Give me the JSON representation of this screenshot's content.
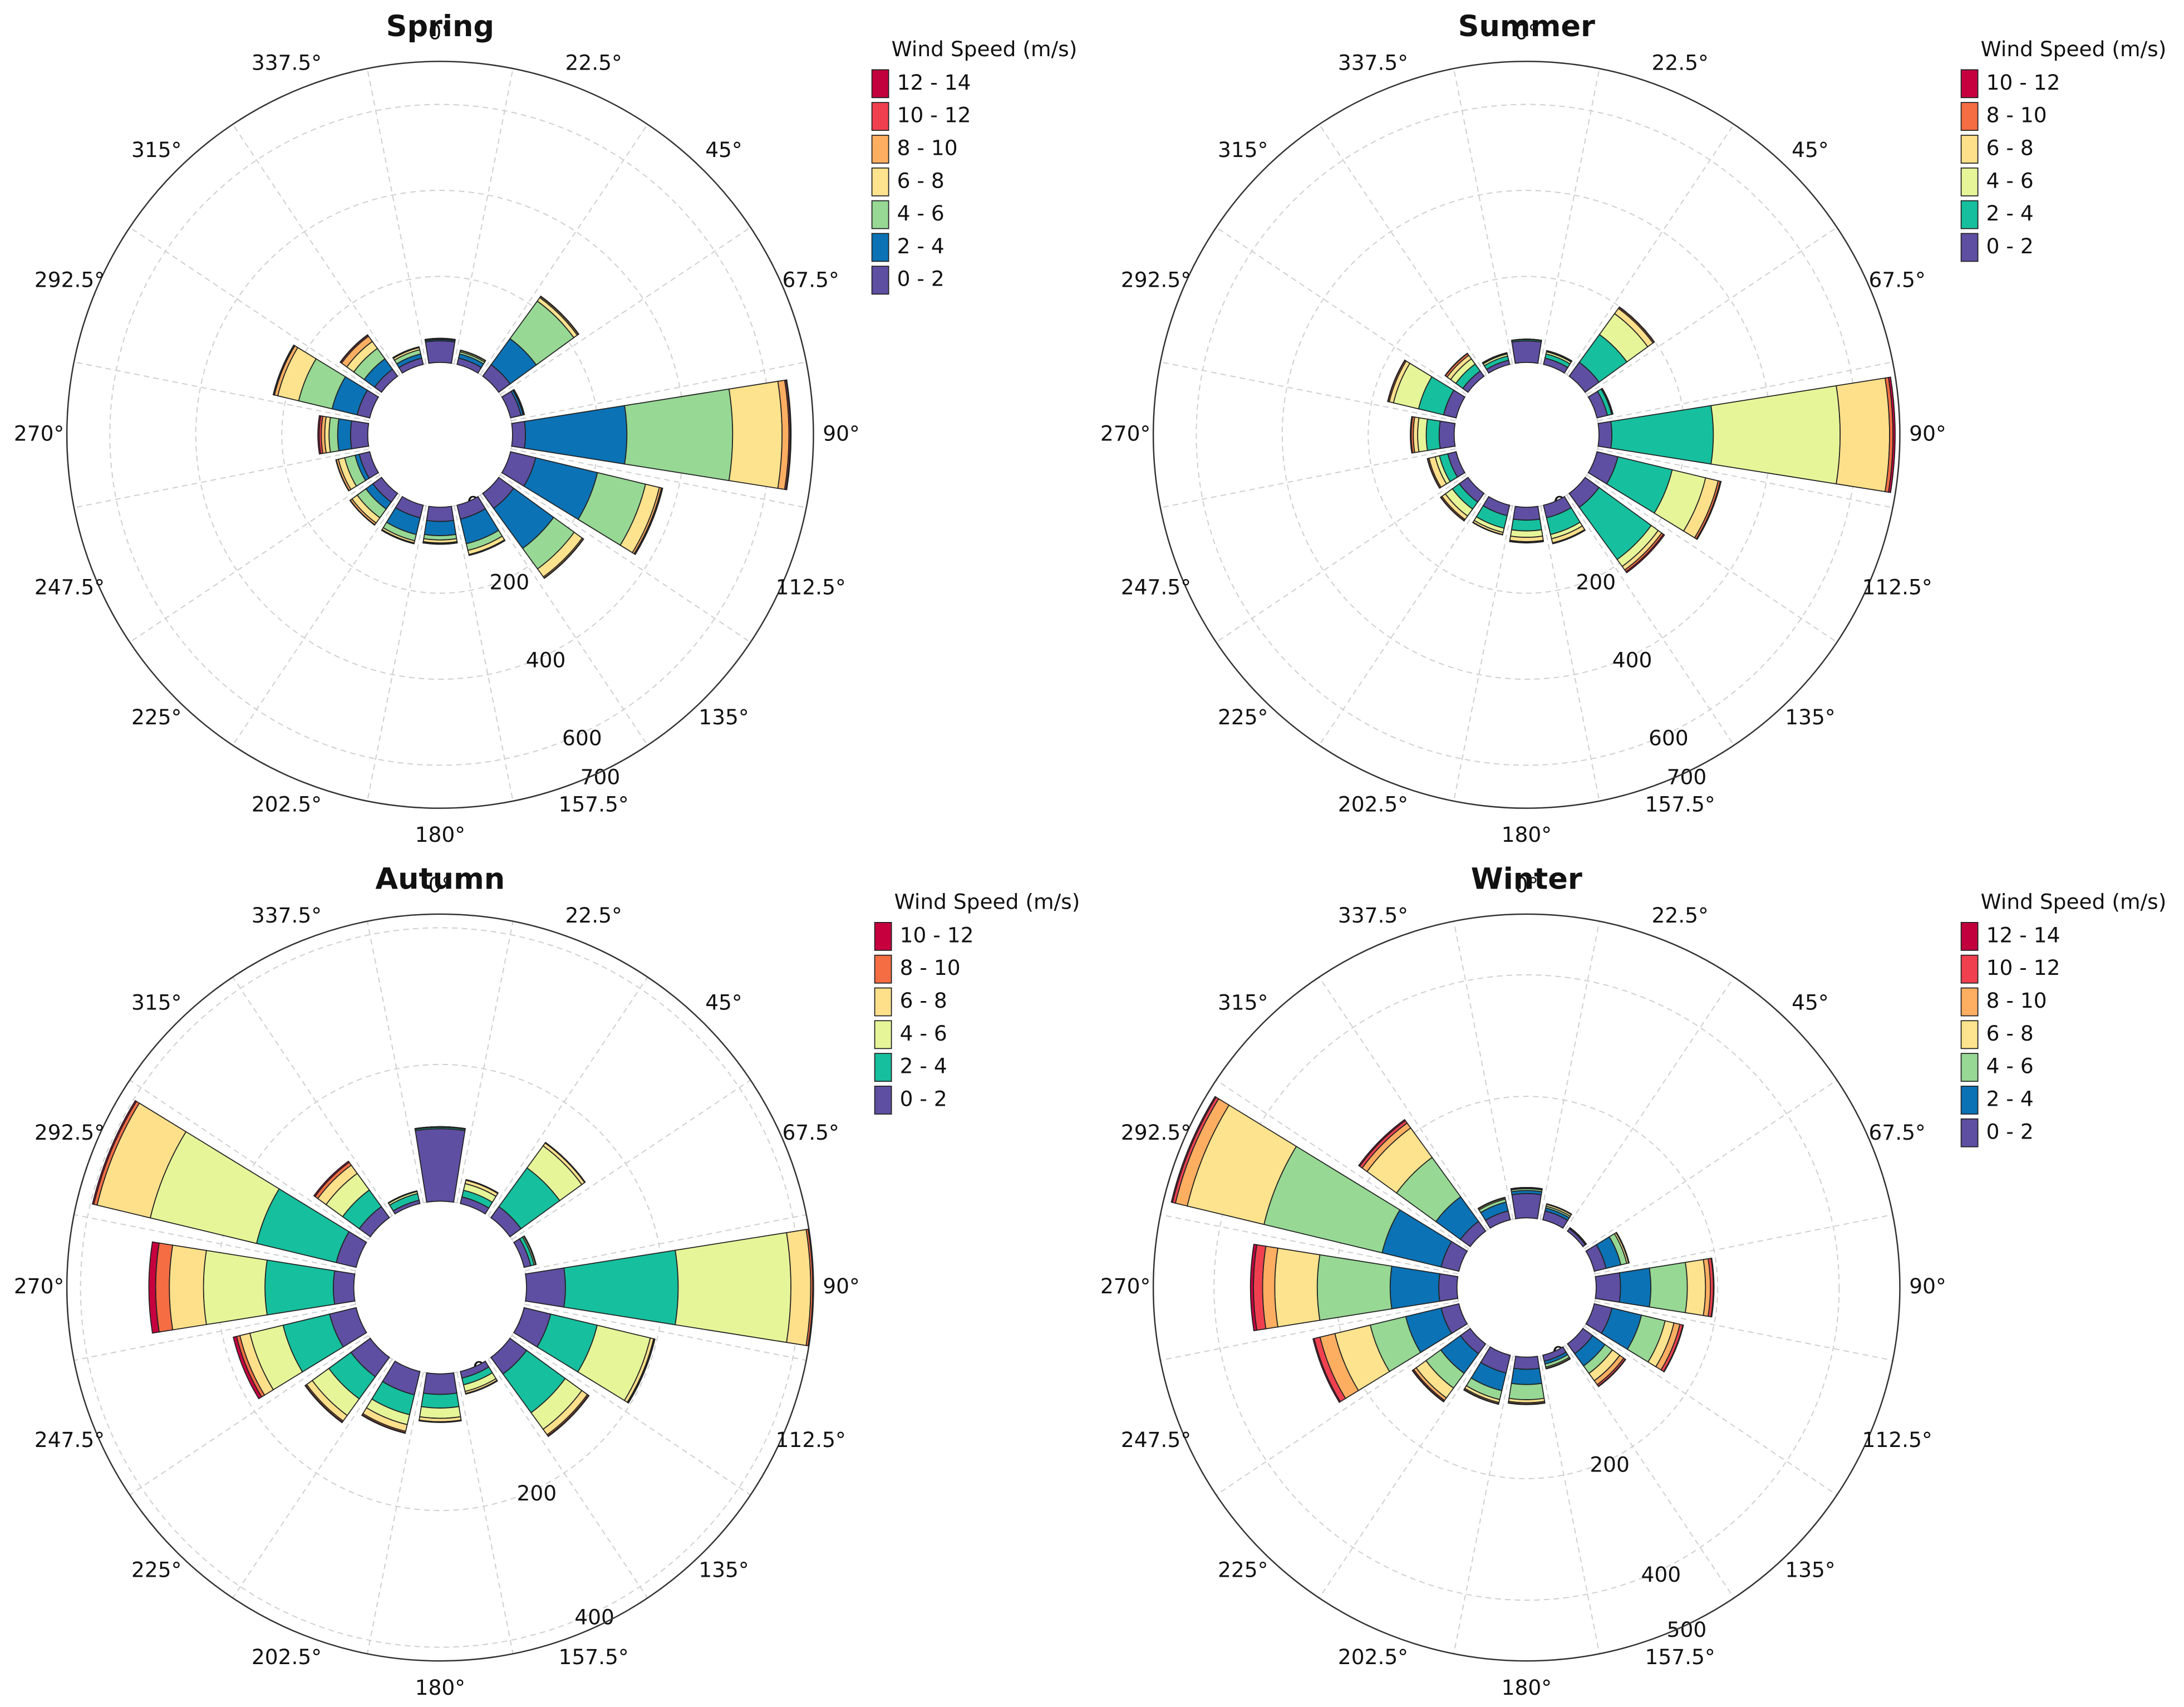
{
  "chart_data": [
    {
      "type": "rose",
      "title": "Spring",
      "legend_title": "Wind Speed (m/s)",
      "categories": [
        "0°",
        "22.5°",
        "45°",
        "67.5°",
        "90°",
        "112.5°",
        "135°",
        "157.5°",
        "180°",
        "202.5°",
        "225°",
        "247.5°",
        "270°",
        "292.5°",
        "315°",
        "337.5°"
      ],
      "rlim": [
        0,
        700
      ],
      "rticks": [
        0,
        200,
        400,
        600,
        700
      ],
      "series": [
        {
          "name": "0 - 2",
          "color": "#5e4fa2",
          "values": [
            50,
            15,
            33,
            25,
            30,
            60,
            43,
            33,
            33,
            30,
            25,
            25,
            40,
            30,
            20,
            15
          ]
        },
        {
          "name": "2 - 4",
          "color": "#0b72b5",
          "values": [
            3,
            10,
            75,
            5,
            236,
            148,
            115,
            59,
            33,
            40,
            20,
            10,
            30,
            60,
            30,
            10
          ]
        },
        {
          "name": "4 - 6",
          "color": "#96d894",
          "values": [
            1,
            5,
            108,
            2,
            246,
            115,
            59,
            16,
            10,
            15,
            25,
            25,
            20,
            80,
            30,
            10
          ]
        },
        {
          "name": "6 - 8",
          "color": "#fde38d",
          "values": [
            1,
            3,
            10,
            1,
            115,
            33,
            23,
            10,
            7,
            5,
            15,
            15,
            10,
            50,
            20,
            5
          ]
        },
        {
          "name": "8 - 10",
          "color": "#fdae61",
          "values": [
            1,
            1,
            3,
            0,
            16,
            5,
            3,
            2,
            2,
            2,
            5,
            5,
            8,
            8,
            15,
            2
          ]
        },
        {
          "name": "10 - 12",
          "color": "#f0404f",
          "values": [
            0,
            0,
            1,
            0,
            3,
            2,
            1,
            0,
            1,
            0,
            1,
            1,
            5,
            2,
            3,
            0
          ]
        },
        {
          "name": "12 - 14",
          "color": "#c2003d",
          "values": [
            0,
            0,
            0,
            0,
            2,
            1,
            0,
            0,
            0,
            0,
            0,
            0,
            3,
            1,
            1,
            0
          ]
        }
      ]
    },
    {
      "type": "rose",
      "title": "Summer",
      "legend_title": "Wind Speed (m/s)",
      "categories": [
        "0°",
        "22.5°",
        "45°",
        "67.5°",
        "90°",
        "112.5°",
        "135°",
        "157.5°",
        "180°",
        "202.5°",
        "225°",
        "247.5°",
        "270°",
        "292.5°",
        "315°",
        "337.5°"
      ],
      "rlim": [
        0,
        700
      ],
      "rticks": [
        0,
        200,
        400,
        600,
        700
      ],
      "series": [
        {
          "name": "0 - 2",
          "color": "#5e4fa2",
          "values": [
            50,
            15,
            40,
            25,
            30,
            50,
            40,
            30,
            30,
            25,
            25,
            20,
            35,
            30,
            15,
            10
          ]
        },
        {
          "name": "2 - 4",
          "color": "#16bf9e",
          "values": [
            3,
            10,
            80,
            10,
            236,
            130,
            150,
            40,
            25,
            30,
            20,
            20,
            30,
            60,
            20,
            10
          ]
        },
        {
          "name": "4 - 6",
          "color": "#e6f598",
          "values": [
            1,
            5,
            60,
            2,
            295,
            80,
            20,
            10,
            15,
            10,
            20,
            10,
            20,
            60,
            15,
            5
          ]
        },
        {
          "name": "6 - 8",
          "color": "#fee08b",
          "values": [
            0,
            2,
            15,
            1,
            115,
            30,
            10,
            10,
            10,
            5,
            10,
            15,
            10,
            10,
            10,
            2
          ]
        },
        {
          "name": "8 - 10",
          "color": "#f46d43",
          "values": [
            0,
            1,
            3,
            0,
            8,
            5,
            5,
            2,
            2,
            1,
            3,
            3,
            5,
            3,
            5,
            1
          ]
        },
        {
          "name": "10 - 12",
          "color": "#c6003f",
          "values": [
            0,
            0,
            1,
            0,
            5,
            2,
            3,
            0,
            1,
            0,
            1,
            1,
            2,
            1,
            1,
            0
          ]
        }
      ]
    },
    {
      "type": "rose",
      "title": "Autumn",
      "legend_title": "Wind Speed (m/s)",
      "categories": [
        "0°",
        "22.5°",
        "45°",
        "67.5°",
        "90°",
        "112.5°",
        "135°",
        "157.5°",
        "180°",
        "202.5°",
        "225°",
        "247.5°",
        "270°",
        "292.5°",
        "315°",
        "337.5°"
      ],
      "rlim": [
        0,
        420
      ],
      "rticks": [
        0,
        200,
        400
      ],
      "series": [
        {
          "name": "0 - 2",
          "color": "#5e4fa2",
          "values": [
            106,
            10,
            20,
            10,
            57,
            40,
            30,
            10,
            30,
            35,
            35,
            40,
            30,
            30,
            20,
            5
          ]
        },
        {
          "name": "2 - 4",
          "color": "#16bf9e",
          "values": [
            2,
            10,
            70,
            5,
            165,
            70,
            70,
            10,
            20,
            30,
            40,
            70,
            100,
            120,
            30,
            10
          ]
        },
        {
          "name": "4 - 6",
          "color": "#e6f598",
          "values": [
            1,
            10,
            40,
            2,
            165,
            80,
            30,
            10,
            15,
            15,
            30,
            50,
            90,
            160,
            30,
            3
          ]
        },
        {
          "name": "6 - 8",
          "color": "#fee08b",
          "values": [
            0,
            5,
            5,
            1,
            29,
            5,
            10,
            3,
            5,
            10,
            10,
            15,
            50,
            80,
            15,
            1
          ]
        },
        {
          "name": "8 - 10",
          "color": "#f46d43",
          "values": [
            0,
            1,
            1,
            0,
            3,
            1,
            2,
            1,
            1,
            2,
            2,
            5,
            20,
            5,
            5,
            0
          ]
        },
        {
          "name": "10 - 12",
          "color": "#c6003f",
          "values": [
            0,
            0,
            0,
            0,
            1,
            1,
            1,
            0,
            0,
            1,
            1,
            5,
            10,
            2,
            2,
            0
          ]
        }
      ]
    },
    {
      "type": "rose",
      "title": "Winter",
      "legend_title": "Wind Speed (m/s)",
      "categories": [
        "0°",
        "22.5°",
        "45°",
        "67.5°",
        "90°",
        "112.5°",
        "135°",
        "157.5°",
        "180°",
        "202.5°",
        "225°",
        "247.5°",
        "270°",
        "292.5°",
        "315°",
        "337.5°"
      ],
      "rlim": [
        0,
        500
      ],
      "rticks": [
        0,
        200,
        400,
        500
      ],
      "series": [
        {
          "name": "0 - 2",
          "color": "#5e4fa2",
          "values": [
            40,
            15,
            5,
            20,
            40,
            30,
            20,
            10,
            20,
            30,
            20,
            30,
            30,
            30,
            20,
            15
          ]
        },
        {
          "name": "2 - 4",
          "color": "#0b72b5",
          "values": [
            5,
            5,
            1,
            25,
            50,
            50,
            25,
            5,
            25,
            30,
            40,
            60,
            80,
            100,
            50,
            15
          ]
        },
        {
          "name": "4 - 6",
          "color": "#96d894",
          "values": [
            3,
            3,
            1,
            10,
            60,
            40,
            15,
            5,
            25,
            15,
            30,
            60,
            120,
            200,
            80,
            5
          ]
        },
        {
          "name": "6 - 8",
          "color": "#fde38d",
          "values": [
            1,
            3,
            0,
            3,
            30,
            15,
            15,
            2,
            5,
            5,
            20,
            60,
            70,
            130,
            60,
            2
          ]
        },
        {
          "name": "8 - 10",
          "color": "#fdae61",
          "values": [
            1,
            1,
            0,
            1,
            8,
            10,
            8,
            1,
            2,
            2,
            5,
            25,
            20,
            20,
            10,
            1
          ]
        },
        {
          "name": "10 - 12",
          "color": "#f0404f",
          "values": [
            0,
            0,
            0,
            0,
            5,
            5,
            3,
            0,
            1,
            1,
            2,
            10,
            15,
            5,
            5,
            0
          ]
        },
        {
          "name": "12 - 14",
          "color": "#c2003d",
          "values": [
            0,
            0,
            0,
            0,
            1,
            1,
            1,
            0,
            0,
            0,
            1,
            2,
            5,
            2,
            2,
            0
          ]
        }
      ]
    }
  ]
}
